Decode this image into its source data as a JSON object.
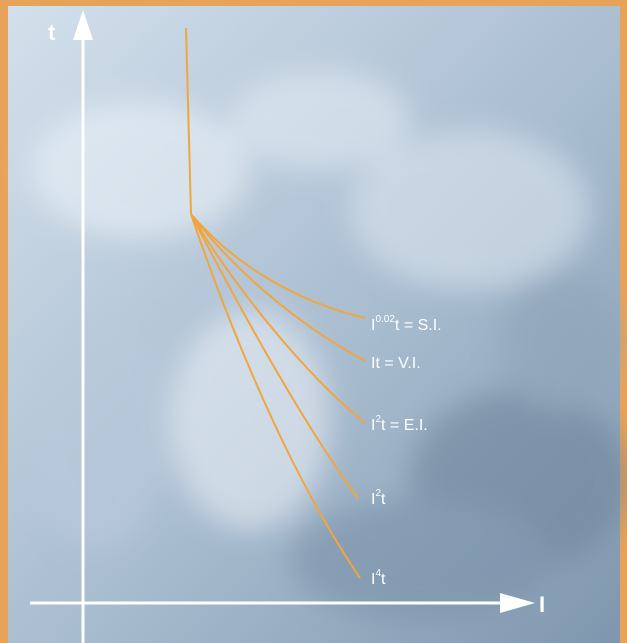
{
  "colors": {
    "frame": "#e8a35a",
    "background_light": "#c9d8e6",
    "background_dark": "#8da2b8",
    "axis": "#ffffff",
    "curve": "#f0a640",
    "label": "#ffffff"
  },
  "chart_data": {
    "type": "line",
    "title": "",
    "xlabel": "I",
    "ylabel": "t",
    "x_ticks": [],
    "y_ticks": [],
    "grid": false,
    "legend": "none",
    "background": "photo-like blue-grey texture",
    "curves": [
      {
        "base": "I",
        "exponent": "0.02",
        "suffix": "t = S.I."
      },
      {
        "base": "It = V.I.",
        "exponent": "",
        "suffix": ""
      },
      {
        "base": "I",
        "exponent": "2",
        "suffix": "t = E.I."
      },
      {
        "base": "I",
        "exponent": "2",
        "suffix": "t"
      },
      {
        "base": "I",
        "exponent": "4",
        "suffix": "t"
      }
    ]
  }
}
